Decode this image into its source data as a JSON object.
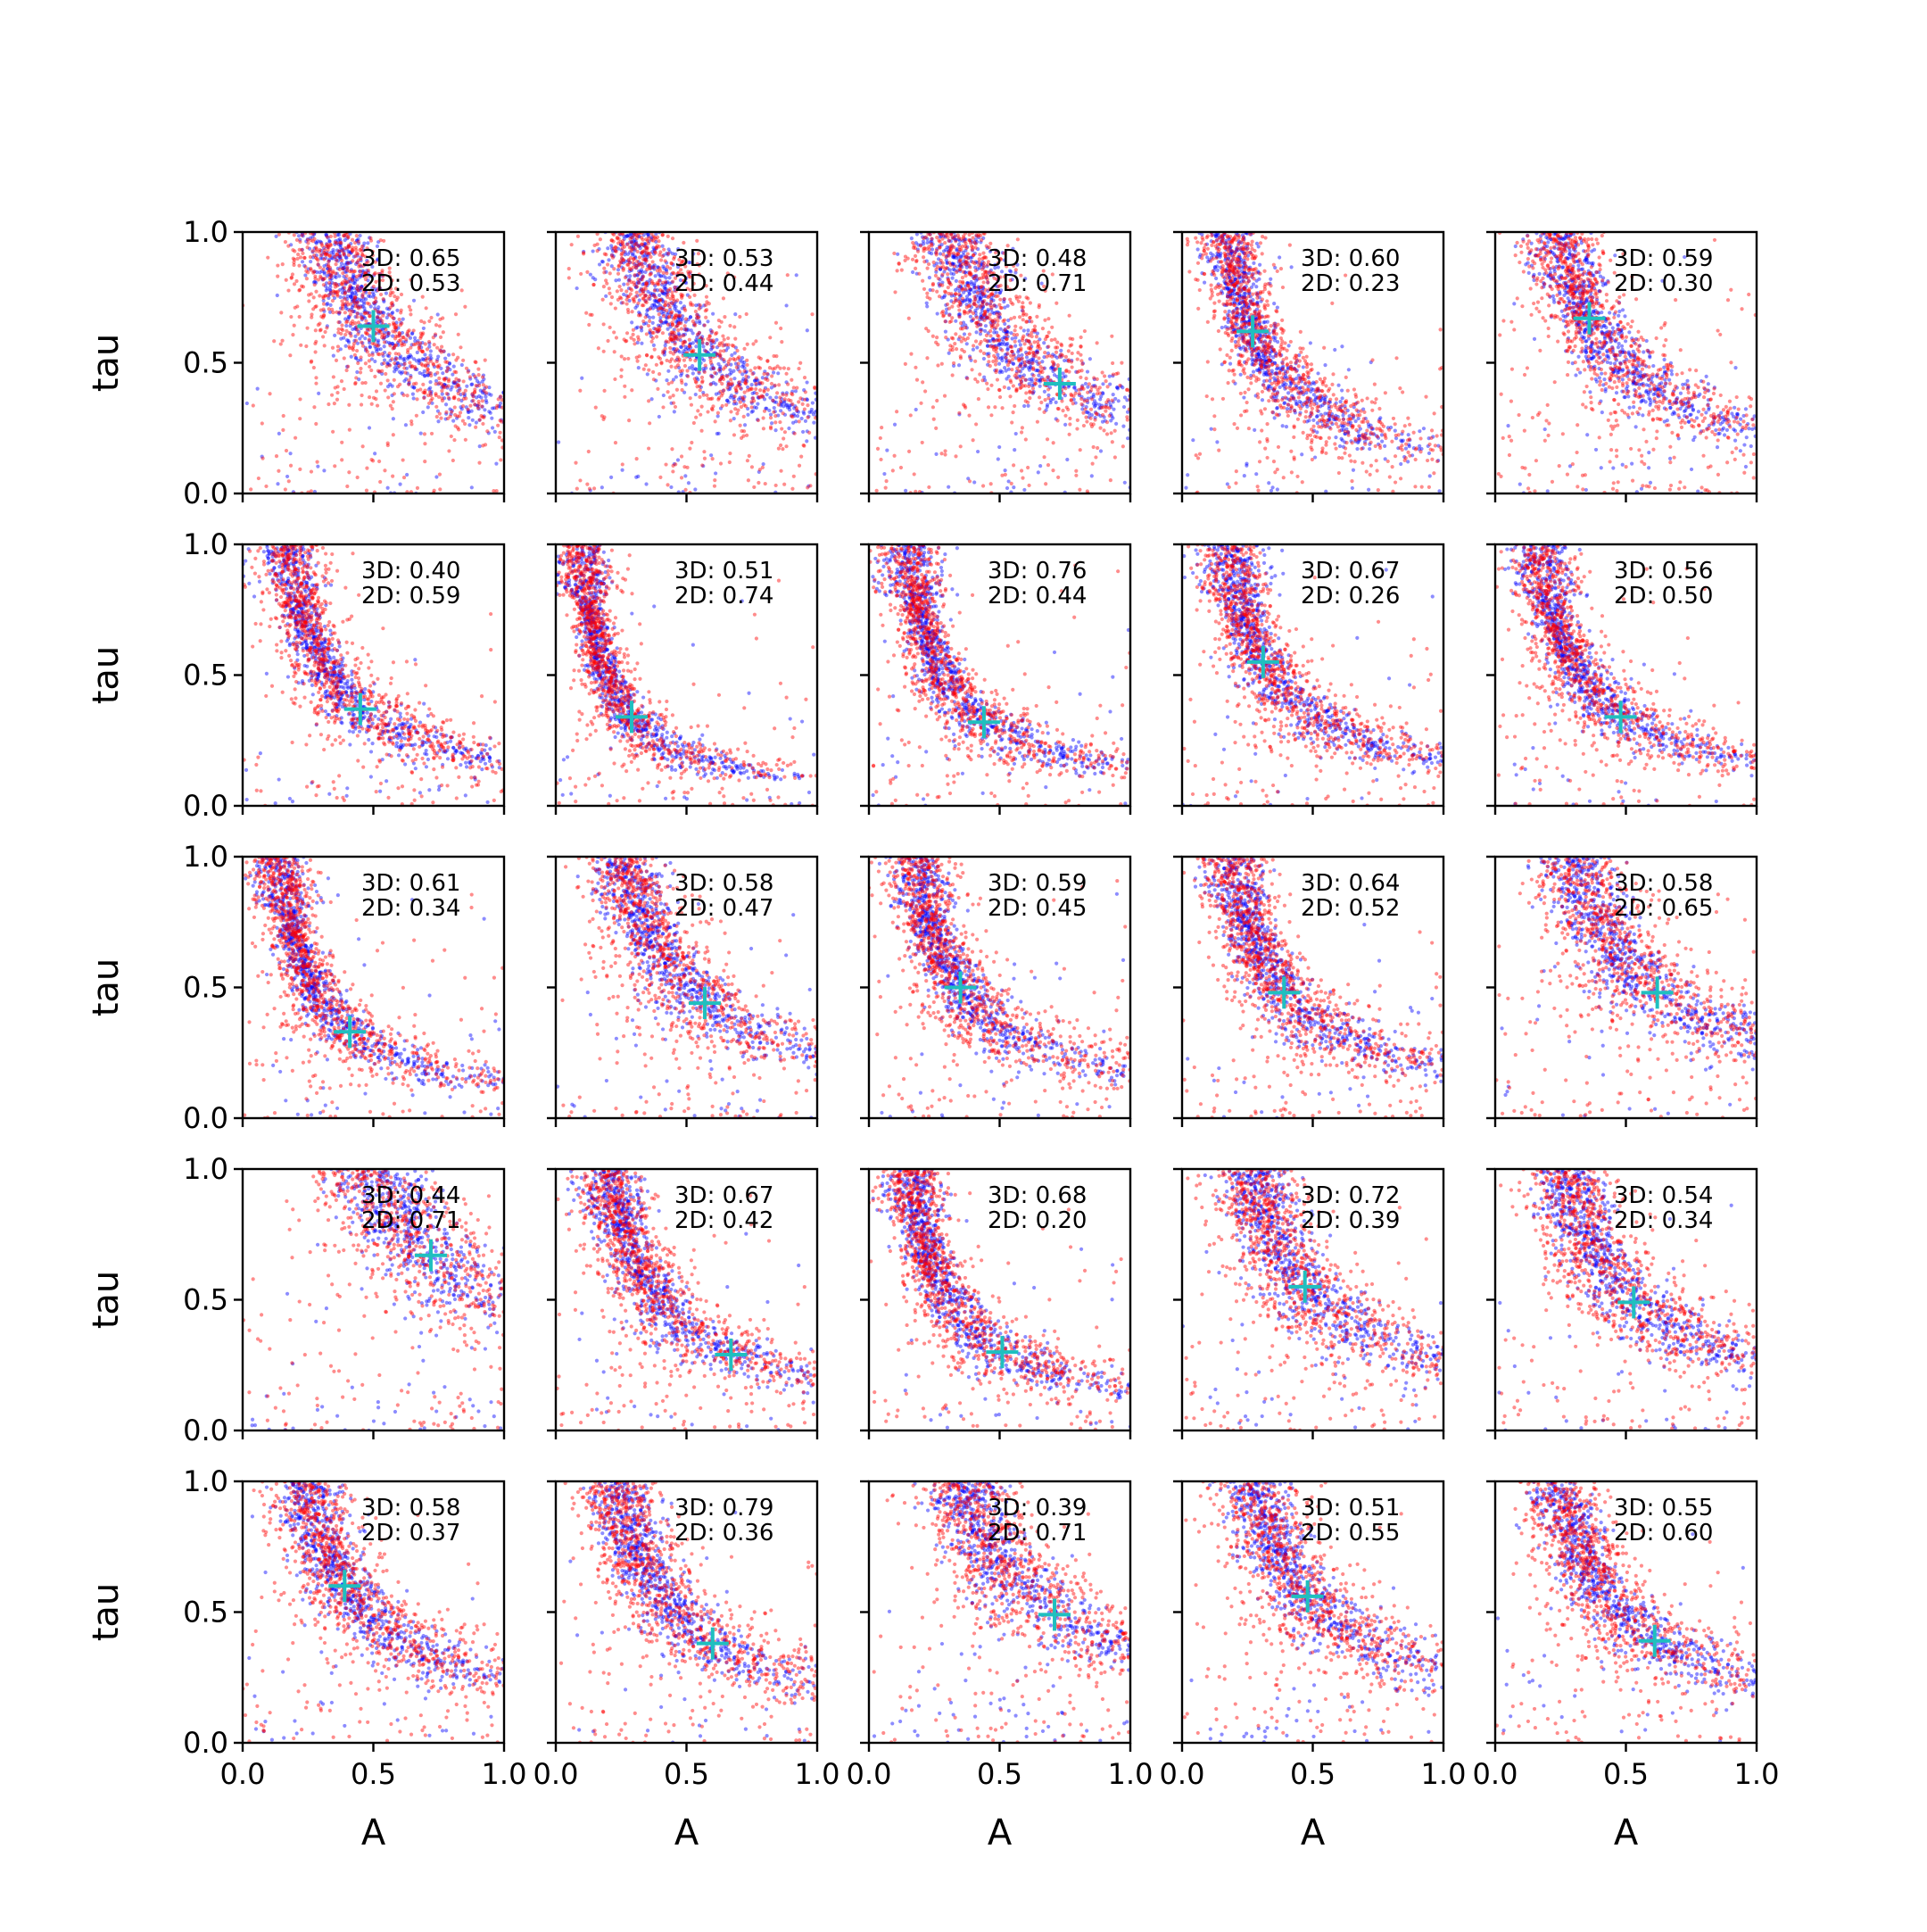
{
  "chart_data": {
    "type": "scatter",
    "layout": {
      "rows": 5,
      "cols": 5
    },
    "xlabel": "A",
    "ylabel": "tau",
    "xlim": [
      0,
      1
    ],
    "ylim": [
      0,
      1
    ],
    "xticks": [
      "0.0",
      "0.5",
      "1.0"
    ],
    "yticks": [
      "0.0",
      "0.5",
      "1.0"
    ],
    "colors": {
      "series_3d": "#0000ff",
      "series_2d": "#ff0000",
      "truth_marker": "#1fbfbf",
      "axes": "#000000"
    },
    "point_alpha": 0.45,
    "annotation_prefixes": {
      "three_d": "3D: ",
      "two_d": "2D: "
    },
    "panels": [
      {
        "row": 0,
        "col": 0,
        "score_3d": "0.65",
        "score_2d": "0.53",
        "truth": [
          0.5,
          0.64
        ]
      },
      {
        "row": 0,
        "col": 1,
        "score_3d": "0.53",
        "score_2d": "0.44",
        "truth": [
          0.55,
          0.53
        ]
      },
      {
        "row": 0,
        "col": 2,
        "score_3d": "0.48",
        "score_2d": "0.71",
        "truth": [
          0.73,
          0.42
        ]
      },
      {
        "row": 0,
        "col": 3,
        "score_3d": "0.60",
        "score_2d": "0.23",
        "truth": [
          0.27,
          0.62
        ]
      },
      {
        "row": 0,
        "col": 4,
        "score_3d": "0.59",
        "score_2d": "0.30",
        "truth": [
          0.36,
          0.67
        ]
      },
      {
        "row": 1,
        "col": 0,
        "score_3d": "0.40",
        "score_2d": "0.59",
        "truth": [
          0.45,
          0.37
        ]
      },
      {
        "row": 1,
        "col": 1,
        "score_3d": "0.51",
        "score_2d": "0.74",
        "truth": [
          0.29,
          0.34
        ]
      },
      {
        "row": 1,
        "col": 2,
        "score_3d": "0.76",
        "score_2d": "0.44",
        "truth": [
          0.44,
          0.32
        ]
      },
      {
        "row": 1,
        "col": 3,
        "score_3d": "0.67",
        "score_2d": "0.26",
        "truth": [
          0.31,
          0.55
        ]
      },
      {
        "row": 1,
        "col": 4,
        "score_3d": "0.56",
        "score_2d": "0.50",
        "truth": [
          0.48,
          0.34
        ]
      },
      {
        "row": 2,
        "col": 0,
        "score_3d": "0.61",
        "score_2d": "0.34",
        "truth": [
          0.41,
          0.33
        ]
      },
      {
        "row": 2,
        "col": 1,
        "score_3d": "0.58",
        "score_2d": "0.47",
        "truth": [
          0.57,
          0.44
        ]
      },
      {
        "row": 2,
        "col": 2,
        "score_3d": "0.59",
        "score_2d": "0.45",
        "truth": [
          0.35,
          0.5
        ]
      },
      {
        "row": 2,
        "col": 3,
        "score_3d": "0.64",
        "score_2d": "0.52",
        "truth": [
          0.39,
          0.48
        ]
      },
      {
        "row": 2,
        "col": 4,
        "score_3d": "0.58",
        "score_2d": "0.65",
        "truth": [
          0.62,
          0.48
        ]
      },
      {
        "row": 3,
        "col": 0,
        "score_3d": "0.44",
        "score_2d": "0.71",
        "truth": [
          0.72,
          0.67
        ]
      },
      {
        "row": 3,
        "col": 1,
        "score_3d": "0.67",
        "score_2d": "0.42",
        "truth": [
          0.67,
          0.29
        ]
      },
      {
        "row": 3,
        "col": 2,
        "score_3d": "0.68",
        "score_2d": "0.20",
        "truth": [
          0.51,
          0.3
        ]
      },
      {
        "row": 3,
        "col": 3,
        "score_3d": "0.72",
        "score_2d": "0.39",
        "truth": [
          0.47,
          0.55
        ]
      },
      {
        "row": 3,
        "col": 4,
        "score_3d": "0.54",
        "score_2d": "0.34",
        "truth": [
          0.53,
          0.49
        ]
      },
      {
        "row": 4,
        "col": 0,
        "score_3d": "0.58",
        "score_2d": "0.37",
        "truth": [
          0.39,
          0.6
        ]
      },
      {
        "row": 4,
        "col": 1,
        "score_3d": "0.79",
        "score_2d": "0.36",
        "truth": [
          0.6,
          0.38
        ]
      },
      {
        "row": 4,
        "col": 2,
        "score_3d": "0.39",
        "score_2d": "0.71",
        "truth": [
          0.71,
          0.49
        ]
      },
      {
        "row": 4,
        "col": 3,
        "score_3d": "0.51",
        "score_2d": "0.55",
        "truth": [
          0.48,
          0.56
        ]
      },
      {
        "row": 4,
        "col": 4,
        "score_3d": "0.55",
        "score_2d": "0.60",
        "truth": [
          0.61,
          0.39
        ]
      }
    ]
  }
}
